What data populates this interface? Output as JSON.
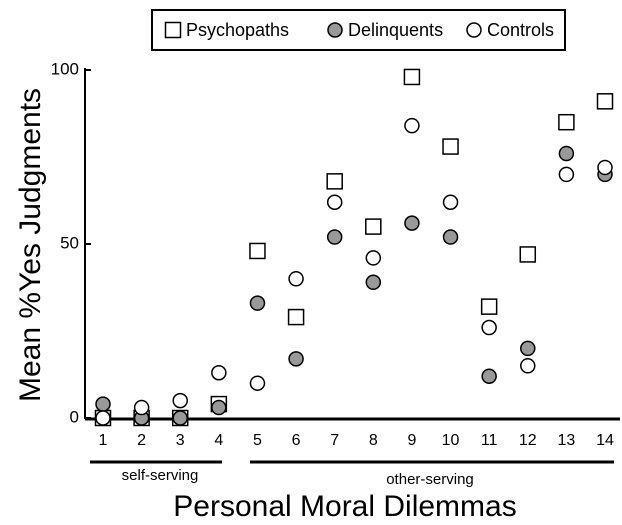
{
  "chart_data": {
    "type": "scatter",
    "x_label": "Personal Moral Dilemmas",
    "y_label": "Mean %Yes Judgments",
    "categories": [
      "1",
      "2",
      "3",
      "4",
      "5",
      "6",
      "7",
      "8",
      "9",
      "10",
      "11",
      "12",
      "13",
      "14"
    ],
    "series": [
      {
        "name": "Psychopaths",
        "marker": "square",
        "color": "#ffffff",
        "values": [
          0,
          0,
          0,
          4,
          48,
          29,
          68,
          55,
          98,
          78,
          32,
          47,
          85,
          91
        ]
      },
      {
        "name": "Delinquents",
        "marker": "circle",
        "color": "#999999",
        "values": [
          4,
          0,
          0,
          3,
          33,
          17,
          52,
          39,
          56,
          52,
          12,
          20,
          76,
          70
        ]
      },
      {
        "name": "Controls",
        "marker": "circle",
        "color": "#ffffff",
        "values": [
          0,
          3,
          5,
          13,
          10,
          40,
          62,
          46,
          84,
          62,
          26,
          15,
          70,
          72
        ]
      }
    ],
    "ylim": [
      0,
      100
    ],
    "yticks": [
      0,
      50,
      100
    ],
    "annotations": [
      "self-serving",
      "other-serving"
    ]
  }
}
